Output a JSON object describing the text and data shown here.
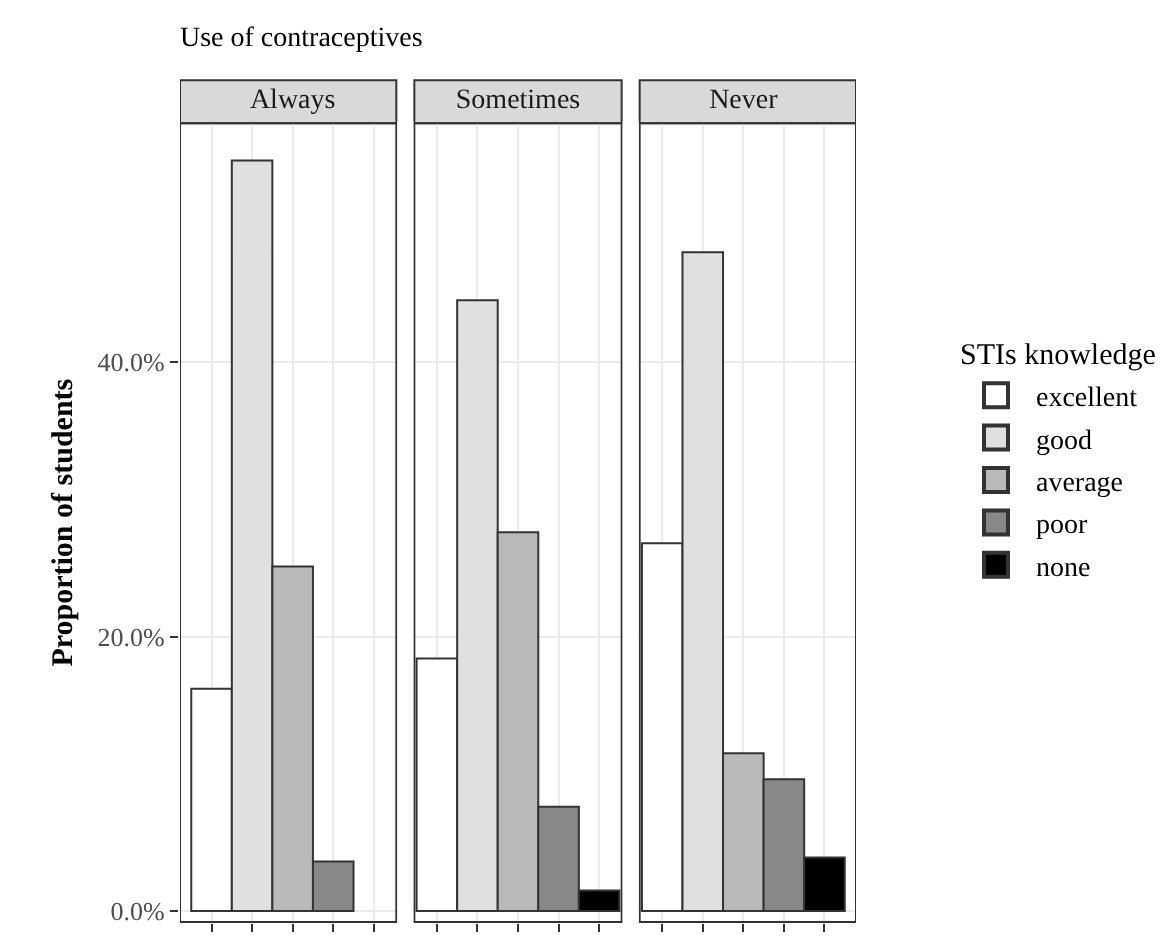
{
  "chart_data": {
    "type": "bar",
    "xlabel": "Use of contraceptives",
    "ylabel": "Proportion of students",
    "legend_title": "STIs knowledge",
    "legend": "right",
    "categories": [
      "Always",
      "Sometimes",
      "Never"
    ],
    "series": [
      {
        "name": "excellent",
        "color": "#ffffff",
        "values": [
          16.2,
          18.4,
          26.8
        ]
      },
      {
        "name": "good",
        "color": "#e0e0e0",
        "values": [
          54.7,
          44.5,
          48.0
        ]
      },
      {
        "name": "average",
        "color": "#b9b9b9",
        "values": [
          25.1,
          27.6,
          11.5
        ]
      },
      {
        "name": "poor",
        "color": "#888888",
        "values": [
          3.6,
          7.6,
          9.6
        ]
      },
      {
        "name": "none",
        "color": "#000000",
        "values": [
          0,
          1.5,
          3.9
        ]
      }
    ],
    "ylim": [
      -0.8,
      57.4
    ],
    "yticks": [
      {
        "value": 0,
        "label": "0.0%"
      },
      {
        "value": 20,
        "label": "20.0%"
      },
      {
        "value": 40,
        "label": "40.0%"
      }
    ],
    "grid": true
  }
}
